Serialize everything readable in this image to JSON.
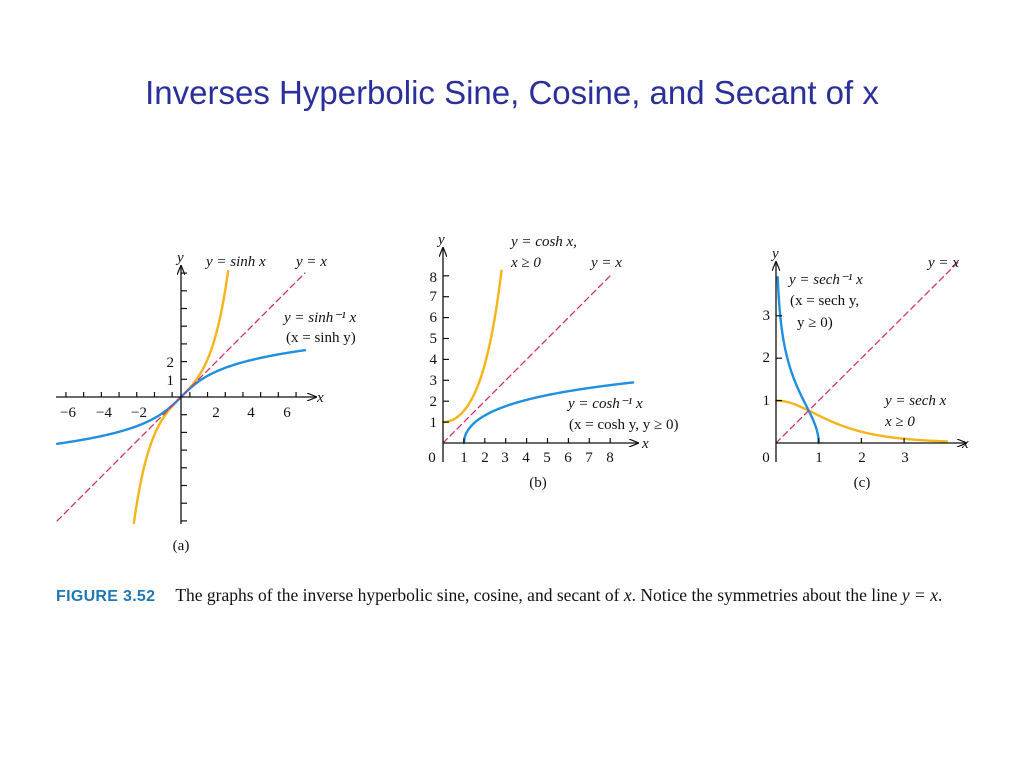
{
  "title": "Inverses Hyperbolic Sine, Cosine, and Secant of x",
  "colors": {
    "title": "#2b2f9b",
    "curve_orange": "#f4b41a",
    "curve_blue": "#1f8fe0",
    "identity_line": "#d6336c",
    "figure_label": "#1f78b4"
  },
  "caption": {
    "label": "FIGURE 3.52",
    "text_part1": "The graphs of the inverse hyperbolic sine, cosine, and secant of ",
    "x_var": "x",
    "text_part2": ". Notice the symmetries about the line ",
    "line_eq": "y = x",
    "text_end": "."
  },
  "chart_data": [
    {
      "type": "line",
      "panel_label": "(a)",
      "xlabel": "x",
      "ylabel": "y",
      "x_tick_labels": [
        "−6",
        "−4",
        "−2",
        "2",
        "4",
        "6"
      ],
      "x_ticks": [
        -6,
        -4,
        -2,
        2,
        4,
        6
      ],
      "y_tick_labels": [
        "1",
        "2"
      ],
      "y_ticks": [
        1,
        2
      ],
      "xlim": [
        -7,
        7.5
      ],
      "ylim": [
        -8,
        8
      ],
      "series": [
        {
          "name": "y = sinh x",
          "function": "sinh",
          "domain": [
            -2.85,
            2.85
          ],
          "color": "#f4b41a"
        },
        {
          "name": "y = sinh⁻¹ x",
          "function": "asinh",
          "domain": [
            -7,
            7
          ],
          "color": "#1f8fe0"
        },
        {
          "name": "y = x",
          "function": "identity",
          "domain": [
            -7,
            7
          ],
          "color": "#d6336c",
          "dashed": true
        }
      ],
      "annotations": {
        "sinh": "y = sinh x",
        "identity": "y = x",
        "asinh_line1": "y = sinh⁻¹ x",
        "asinh_line2": "(x = sinh y)"
      }
    },
    {
      "type": "line",
      "panel_label": "(b)",
      "xlabel": "x",
      "ylabel": "y",
      "x_tick_labels": [
        "1",
        "2",
        "3",
        "4",
        "5",
        "6",
        "7",
        "8"
      ],
      "x_ticks": [
        1,
        2,
        3,
        4,
        5,
        6,
        7,
        8
      ],
      "y_tick_labels": [
        "1",
        "2",
        "3",
        "4",
        "5",
        "6",
        "7",
        "8"
      ],
      "y_ticks": [
        1,
        2,
        3,
        4,
        5,
        6,
        7,
        8
      ],
      "origin_label": "0",
      "xlim": [
        0,
        9.6
      ],
      "ylim": [
        0,
        9.6
      ],
      "series": [
        {
          "name": "y = cosh x, x ≥ 0",
          "function": "cosh",
          "domain": [
            0,
            2.8
          ],
          "color": "#f4b41a"
        },
        {
          "name": "y = cosh⁻¹ x",
          "function": "acosh",
          "domain": [
            1,
            9.1
          ],
          "color": "#1f8fe0"
        },
        {
          "name": "y = x",
          "function": "identity",
          "domain": [
            0,
            8
          ],
          "color": "#d6336c",
          "dashed": true
        }
      ],
      "annotations": {
        "cosh_line1": "y = cosh x,",
        "cosh_line2": "x ≥ 0",
        "identity": "y = x",
        "acosh_line1": "y = cosh⁻¹ x",
        "acosh_line2": "(x = cosh y, y ≥ 0)"
      }
    },
    {
      "type": "line",
      "panel_label": "(c)",
      "xlabel": "x",
      "ylabel": "y",
      "x_tick_labels": [
        "1",
        "2",
        "3"
      ],
      "x_ticks": [
        1,
        2,
        3
      ],
      "y_tick_labels": [
        "1",
        "2",
        "3"
      ],
      "y_ticks": [
        1,
        2,
        3
      ],
      "origin_label": "0",
      "xlim": [
        0,
        4.4
      ],
      "ylim": [
        0,
        4.4
      ],
      "series": [
        {
          "name": "y = sech x, x ≥ 0",
          "function": "sech",
          "domain": [
            0,
            4
          ],
          "color": "#f4b41a"
        },
        {
          "name": "y = sech⁻¹ x",
          "function": "asech",
          "domain": [
            0.04,
            1
          ],
          "color": "#1f8fe0"
        },
        {
          "name": "y = x",
          "function": "identity",
          "domain": [
            0,
            4.3
          ],
          "color": "#d6336c",
          "dashed": true
        }
      ],
      "annotations": {
        "identity": "y = x",
        "asech_line1": "y = sech⁻¹ x",
        "asech_line2": "(x = sech y,",
        "asech_line3": "y ≥ 0)",
        "sech_line1": "y = sech x",
        "sech_line2": "x ≥ 0"
      }
    }
  ]
}
